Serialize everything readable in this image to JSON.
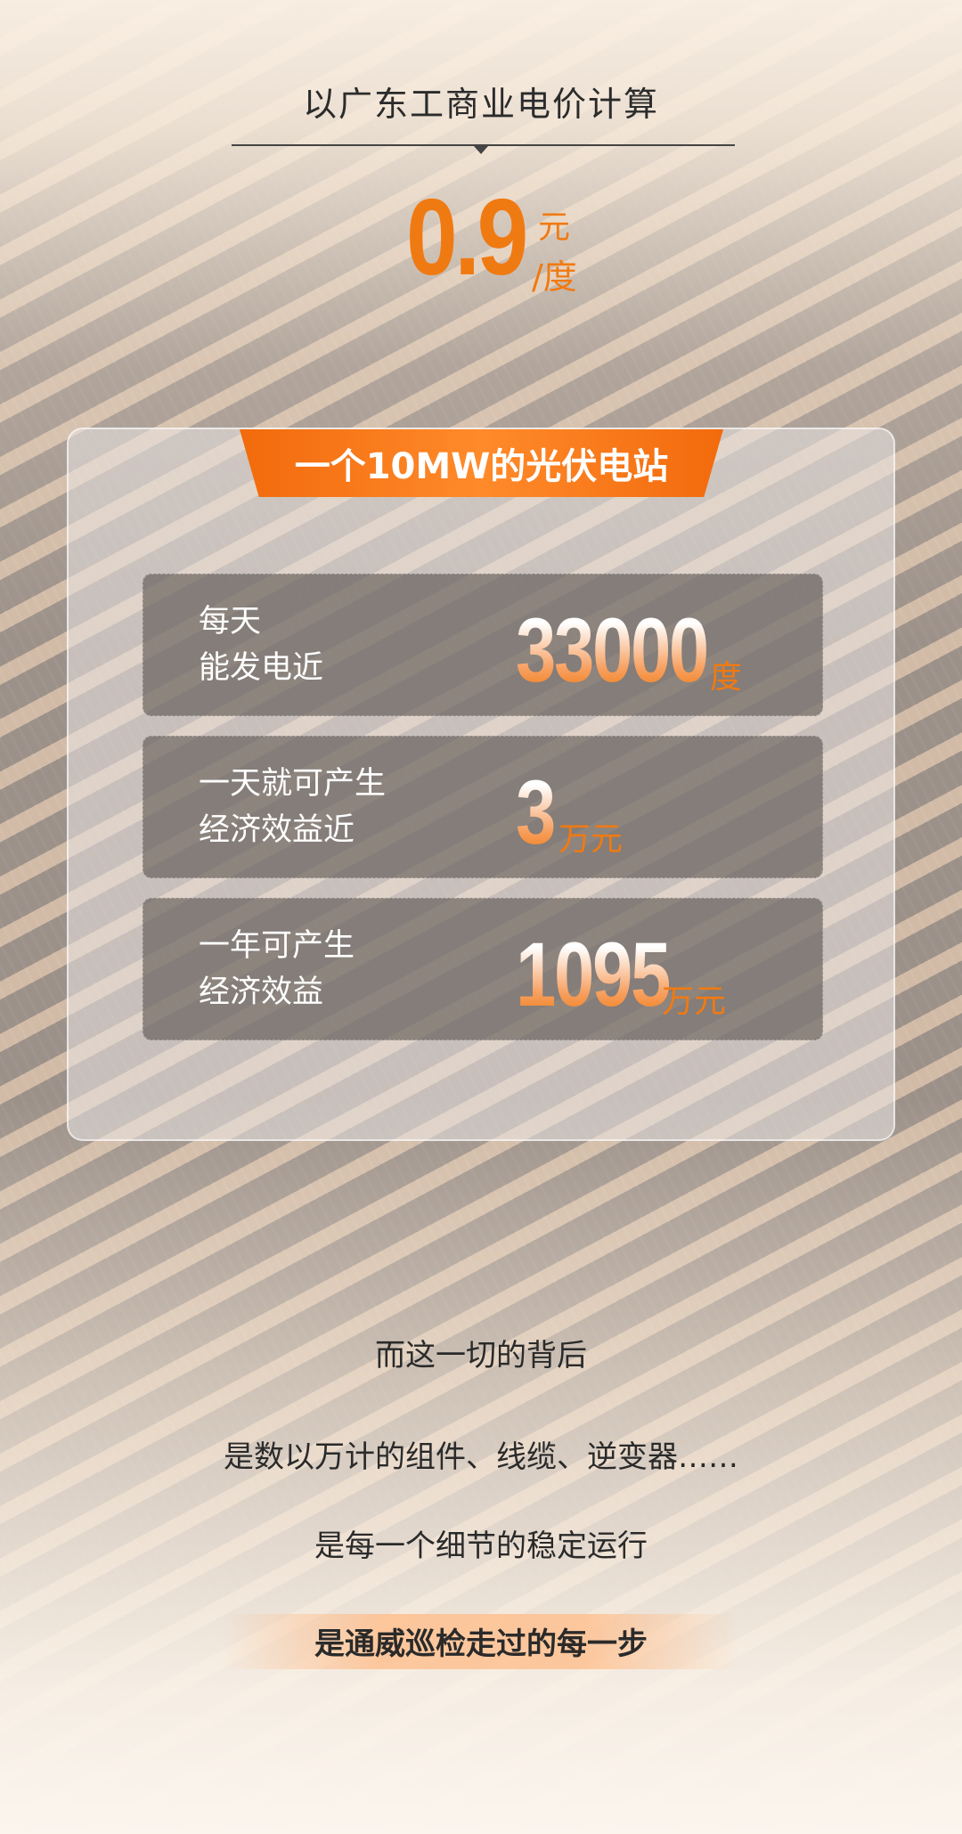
{
  "header": {
    "title": "以广东工商业电价计算"
  },
  "price": {
    "value": "0.9",
    "unit_top": "元",
    "unit_bottom": "/度"
  },
  "card": {
    "banner": "一个10MW的光伏电站",
    "rows": [
      {
        "label_1": "每天",
        "label_2": "能发电近",
        "value": "33000",
        "unit": "度"
      },
      {
        "label_1": "一天就可产生",
        "label_2": "经济效益近",
        "value": "3",
        "unit": "万元"
      },
      {
        "label_1": "一年可产生",
        "label_2": "经济效益",
        "value": "1095",
        "unit": "万元"
      }
    ]
  },
  "closing": [
    "而这一切的背后",
    "是数以万计的组件、线缆、逆变器……",
    "是每一个细节的稳定运行",
    "是通威巡检走过的每一步"
  ],
  "colors": {
    "accent": "#f07a12",
    "text": "#2a2a2a"
  }
}
